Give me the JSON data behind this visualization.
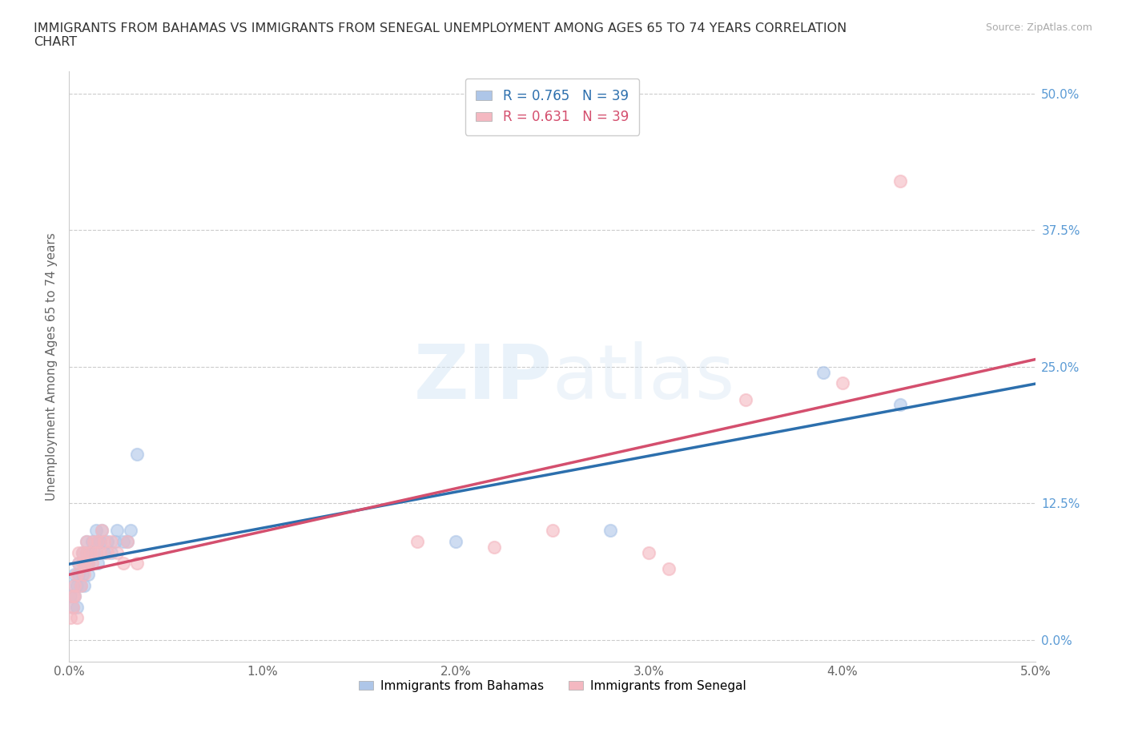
{
  "title": "IMMIGRANTS FROM BAHAMAS VS IMMIGRANTS FROM SENEGAL UNEMPLOYMENT AMONG AGES 65 TO 74 YEARS CORRELATION\nCHART",
  "source": "Source: ZipAtlas.com",
  "ylabel": "Unemployment Among Ages 65 to 74 years",
  "xlim": [
    0.0,
    0.05
  ],
  "ylim": [
    -0.02,
    0.52
  ],
  "yticks": [
    0.0,
    0.125,
    0.25,
    0.375,
    0.5
  ],
  "ytick_labels": [
    "0.0%",
    "12.5%",
    "25.0%",
    "37.5%",
    "50.0%"
  ],
  "xticks": [
    0.0,
    0.01,
    0.02,
    0.03,
    0.04,
    0.05
  ],
  "xtick_labels": [
    "0.0%",
    "1.0%",
    "2.0%",
    "3.0%",
    "4.0%",
    "5.0%"
  ],
  "bahamas_color": "#aec6e8",
  "senegal_color": "#f4b8c1",
  "regression_bahamas_color": "#2c6fad",
  "regression_senegal_color": "#d44f6e",
  "regression_dashed_color": "#d44f6e",
  "R_bahamas": 0.765,
  "N_bahamas": 39,
  "R_senegal": 0.631,
  "N_senegal": 39,
  "background_color": "#ffffff",
  "grid_color": "#cccccc",
  "bahamas_x": [
    0.0001,
    0.0002,
    0.0002,
    0.0003,
    0.0003,
    0.0004,
    0.0004,
    0.0005,
    0.0005,
    0.0006,
    0.0007,
    0.0007,
    0.0008,
    0.0008,
    0.0009,
    0.0009,
    0.001,
    0.001,
    0.0011,
    0.0012,
    0.0013,
    0.0014,
    0.0015,
    0.0015,
    0.0016,
    0.0017,
    0.0018,
    0.002,
    0.0022,
    0.0024,
    0.0025,
    0.0028,
    0.003,
    0.0032,
    0.0035,
    0.02,
    0.028,
    0.039,
    0.043
  ],
  "bahamas_y": [
    0.04,
    0.05,
    0.03,
    0.06,
    0.04,
    0.05,
    0.03,
    0.07,
    0.06,
    0.05,
    0.06,
    0.08,
    0.07,
    0.05,
    0.08,
    0.09,
    0.07,
    0.06,
    0.08,
    0.09,
    0.08,
    0.1,
    0.09,
    0.07,
    0.09,
    0.1,
    0.08,
    0.09,
    0.08,
    0.09,
    0.1,
    0.09,
    0.09,
    0.1,
    0.17,
    0.09,
    0.1,
    0.245,
    0.215
  ],
  "senegal_x": [
    0.0001,
    0.0002,
    0.0002,
    0.0003,
    0.0003,
    0.0004,
    0.0004,
    0.0005,
    0.0005,
    0.0006,
    0.0007,
    0.0007,
    0.0008,
    0.0008,
    0.0009,
    0.0009,
    0.001,
    0.0011,
    0.0012,
    0.0013,
    0.0014,
    0.0015,
    0.0016,
    0.0017,
    0.0018,
    0.002,
    0.0022,
    0.0025,
    0.0028,
    0.003,
    0.0035,
    0.018,
    0.022,
    0.025,
    0.03,
    0.031,
    0.035,
    0.04,
    0.043
  ],
  "senegal_y": [
    0.02,
    0.04,
    0.03,
    0.05,
    0.04,
    0.06,
    0.02,
    0.08,
    0.07,
    0.05,
    0.07,
    0.08,
    0.07,
    0.06,
    0.08,
    0.09,
    0.07,
    0.08,
    0.07,
    0.09,
    0.08,
    0.09,
    0.08,
    0.1,
    0.09,
    0.08,
    0.09,
    0.08,
    0.07,
    0.09,
    0.07,
    0.09,
    0.085,
    0.1,
    0.08,
    0.065,
    0.22,
    0.235,
    0.42
  ],
  "legend_bahamas_label": "Immigrants from Bahamas",
  "legend_senegal_label": "Immigrants from Senegal"
}
